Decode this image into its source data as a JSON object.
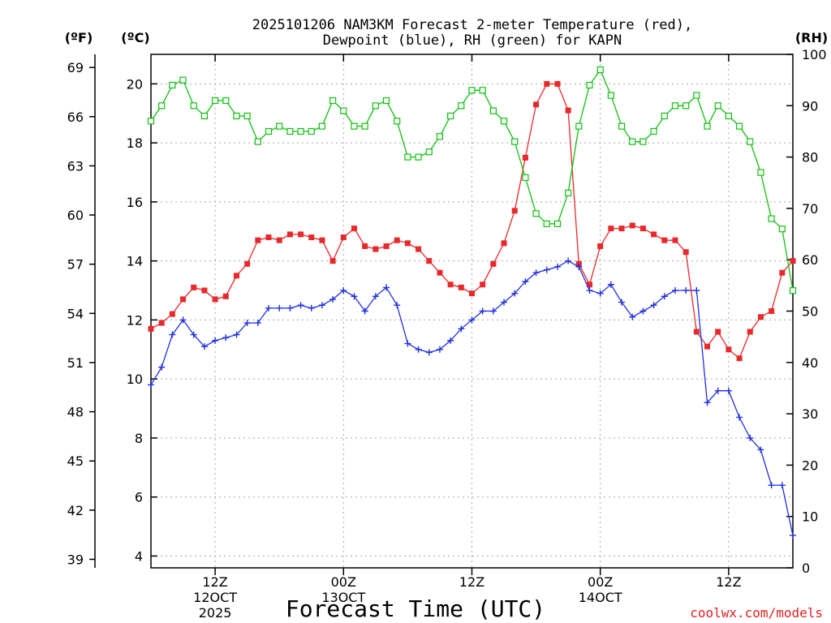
{
  "chart_data": {
    "type": "line",
    "title": {
      "line1": "2025101206 NAM3KM Forecast 2-meter Temperature (red),",
      "line2": "Dewpoint (blue), RH (green) for KAPN"
    },
    "units": {
      "fahrenheit": "(ºF)",
      "celsius": "(ºC)",
      "rh": "(RH)"
    },
    "xlabel": "Forecast Time (UTC)",
    "credit": "coolwx.com/models",
    "x_hours": [
      0,
      60
    ],
    "x_ticks": [
      {
        "hour": 6,
        "line1": "12Z",
        "line2": "12OCT",
        "line3": "2025"
      },
      {
        "hour": 18,
        "line1": "00Z",
        "line2": "13OCT",
        "line3": ""
      },
      {
        "hour": 30,
        "line1": "12Z",
        "line2": "",
        "line3": ""
      },
      {
        "hour": 42,
        "line1": "00Z",
        "line2": "14OCT",
        "line3": ""
      },
      {
        "hour": 54,
        "line1": "12Z",
        "line2": "",
        "line3": ""
      }
    ],
    "y_celsius": {
      "ylim": [
        3.6,
        21
      ],
      "ticks": [
        4,
        6,
        8,
        10,
        12,
        14,
        16,
        18,
        20
      ]
    },
    "y_fahrenheit_ticks": [
      {
        "label": "39",
        "c": 3.889
      },
      {
        "label": "42",
        "c": 5.556
      },
      {
        "label": "45",
        "c": 7.222
      },
      {
        "label": "48",
        "c": 8.889
      },
      {
        "label": "51",
        "c": 10.556
      },
      {
        "label": "54",
        "c": 12.222
      },
      {
        "label": "57",
        "c": 13.889
      },
      {
        "label": "60",
        "c": 15.556
      },
      {
        "label": "63",
        "c": 17.222
      },
      {
        "label": "66",
        "c": 18.889
      },
      {
        "label": "69",
        "c": 20.556
      }
    ],
    "y_rh": {
      "ylim": [
        0,
        100
      ],
      "ticks": [
        0,
        10,
        20,
        30,
        40,
        50,
        60,
        70,
        80,
        90,
        100
      ]
    },
    "series": [
      {
        "name": "2-meter Temperature",
        "unit": "C",
        "color": "#e8282a",
        "marker": "filled-square",
        "hours": [
          0,
          1,
          2,
          3,
          4,
          5,
          6,
          7,
          8,
          9,
          10,
          11,
          12,
          13,
          14,
          15,
          16,
          17,
          18,
          19,
          20,
          21,
          22,
          23,
          24,
          25,
          26,
          27,
          28,
          29,
          30,
          31,
          32,
          33,
          34,
          35,
          36,
          37,
          38,
          39,
          40,
          41,
          42,
          43,
          44,
          45,
          46,
          47,
          48,
          49,
          50,
          51,
          52,
          53,
          54,
          55,
          56,
          57,
          58,
          59,
          60
        ],
        "values": [
          11.7,
          11.9,
          12.2,
          12.7,
          13.1,
          13.0,
          12.7,
          12.8,
          13.5,
          13.9,
          14.7,
          14.8,
          14.7,
          14.9,
          14.9,
          14.8,
          14.7,
          14.0,
          14.8,
          15.1,
          14.5,
          14.4,
          14.5,
          14.7,
          14.6,
          14.4,
          14.0,
          13.6,
          13.2,
          13.1,
          12.9,
          13.2,
          13.9,
          14.6,
          15.7,
          17.5,
          19.3,
          20.0,
          20.0,
          19.1,
          13.9,
          13.2,
          14.5,
          15.1,
          15.1,
          15.2,
          15.1,
          14.9,
          14.7,
          14.7,
          14.3,
          11.6,
          11.1,
          11.6,
          11.0,
          10.7,
          11.6,
          12.1,
          12.3,
          13.6,
          14.0
        ]
      },
      {
        "name": "Dewpoint",
        "unit": "C",
        "color": "#2030e0",
        "marker": "plus",
        "hours": [
          0,
          1,
          2,
          3,
          4,
          5,
          6,
          7,
          8,
          9,
          10,
          11,
          12,
          13,
          14,
          15,
          16,
          17,
          18,
          19,
          20,
          21,
          22,
          23,
          24,
          25,
          26,
          27,
          28,
          29,
          30,
          31,
          32,
          33,
          34,
          35,
          36,
          37,
          38,
          39,
          40,
          41,
          42,
          43,
          44,
          45,
          46,
          47,
          48,
          49,
          50,
          51,
          52,
          53,
          54,
          55,
          56,
          57,
          58,
          59,
          60
        ],
        "values": [
          9.8,
          10.4,
          11.5,
          12.0,
          11.5,
          11.1,
          11.3,
          11.4,
          11.5,
          11.9,
          11.9,
          12.4,
          12.4,
          12.4,
          12.5,
          12.4,
          12.5,
          12.7,
          13.0,
          12.8,
          12.3,
          12.8,
          13.1,
          12.5,
          11.2,
          11.0,
          10.9,
          11.0,
          11.3,
          11.7,
          12.0,
          12.3,
          12.3,
          12.6,
          12.9,
          13.3,
          13.6,
          13.7,
          13.8,
          14.0,
          13.8,
          13.0,
          12.9,
          13.2,
          12.6,
          12.1,
          12.3,
          12.5,
          12.8,
          13.0,
          13.0,
          13.0,
          9.2,
          9.6,
          9.6,
          8.7,
          8.0,
          7.6,
          6.4,
          6.4,
          4.7
        ]
      },
      {
        "name": "RH",
        "unit": "%",
        "color": "#10c010",
        "marker": "open-square",
        "hours": [
          0,
          1,
          2,
          3,
          4,
          5,
          6,
          7,
          8,
          9,
          10,
          11,
          12,
          13,
          14,
          15,
          16,
          17,
          18,
          19,
          20,
          21,
          22,
          23,
          24,
          25,
          26,
          27,
          28,
          29,
          30,
          31,
          32,
          33,
          34,
          35,
          36,
          37,
          38,
          39,
          40,
          41,
          42,
          43,
          44,
          45,
          46,
          47,
          48,
          49,
          50,
          51,
          52,
          53,
          54,
          55,
          56,
          57,
          58,
          59,
          60
        ],
        "values": [
          87,
          90,
          94,
          95,
          90,
          88,
          91,
          91,
          88,
          88,
          83,
          85,
          86,
          85,
          85,
          85,
          86,
          91,
          89,
          86,
          86,
          90,
          91,
          87,
          80,
          80,
          81,
          84,
          88,
          90,
          93,
          93,
          89,
          87,
          83,
          76,
          69,
          67,
          67,
          73,
          86,
          94,
          97,
          92,
          86,
          83,
          83,
          85,
          88,
          90,
          90,
          92,
          86,
          90,
          88,
          86,
          83,
          77,
          68,
          66,
          54
        ]
      }
    ]
  }
}
